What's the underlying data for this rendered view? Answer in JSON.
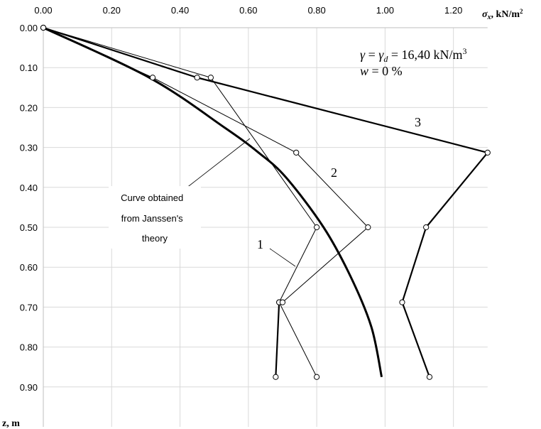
{
  "chart_data": {
    "type": "line",
    "x_axis": {
      "label_symbol": "σ",
      "label_subscript": "x",
      "label_unit": ", kN/m",
      "label_sup": "2",
      "lim": [
        0,
        1.3
      ],
      "ticks": [
        0,
        0.2,
        0.4,
        0.6,
        0.8,
        1.0,
        1.2
      ],
      "tick_labels": [
        "0.00",
        "0.20",
        "0.40",
        "0.60",
        "0.80",
        "1.00",
        "1.20"
      ],
      "position": "top"
    },
    "y_axis": {
      "label": "z, m",
      "lim": [
        0,
        1.0
      ],
      "ticks": [
        0,
        0.1,
        0.2,
        0.3,
        0.4,
        0.5,
        0.6,
        0.7,
        0.8,
        0.9
      ],
      "tick_labels": [
        "0.00",
        "0.10",
        "0.20",
        "0.30",
        "0.40",
        "0.50",
        "0.60",
        "0.70",
        "0.80",
        "0.90"
      ],
      "inverted": true
    },
    "grid": true,
    "series": [
      {
        "name": "1",
        "style": "thin-with-thick-bottom",
        "points": [
          [
            0,
            0
          ],
          [
            0.49,
            0.125
          ],
          [
            0.8,
            0.5
          ],
          [
            0.69,
            0.688
          ],
          [
            0.8,
            0.875
          ]
        ],
        "branch_points": [
          [
            0.69,
            0.688
          ],
          [
            0.68,
            0.875
          ]
        ]
      },
      {
        "name": "2",
        "style": "thin",
        "points": [
          [
            0,
            0
          ],
          [
            0.32,
            0.125
          ],
          [
            0.74,
            0.313
          ],
          [
            0.95,
            0.5
          ],
          [
            0.7,
            0.688
          ]
        ]
      },
      {
        "name": "3",
        "style": "thick",
        "points": [
          [
            0,
            0
          ],
          [
            0.45,
            0.125
          ],
          [
            1.3,
            0.313
          ],
          [
            1.12,
            0.5
          ],
          [
            1.05,
            0.688
          ],
          [
            1.13,
            0.875
          ]
        ]
      },
      {
        "name": "Janssen",
        "style": "thick-curve",
        "points": [
          [
            0,
            0
          ],
          [
            0.31,
            0.125
          ],
          [
            0.53,
            0.25
          ],
          [
            0.63,
            0.313
          ],
          [
            0.71,
            0.375
          ],
          [
            0.82,
            0.5
          ],
          [
            0.9,
            0.625
          ],
          [
            0.96,
            0.75
          ],
          [
            0.99,
            0.875
          ]
        ]
      }
    ],
    "annotations": {
      "curve_label_lines": [
        "Curve obtained",
        "from Janssen's",
        "theory"
      ],
      "gamma_line": {
        "gamma": "γ",
        "eq1": " = ",
        "gamma_d": "γ",
        "sub_d": "d",
        "value": " = 16,40 kN/m",
        "sup": "3"
      },
      "w_line": {
        "w": "w",
        "rest": " = 0 %"
      },
      "series_labels": [
        "1",
        "2",
        "3"
      ]
    }
  }
}
